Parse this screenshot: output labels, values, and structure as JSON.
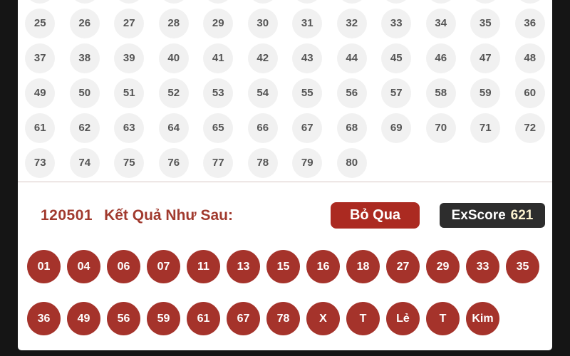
{
  "page": {
    "bg_color": "#151515",
    "panel_bg_color": "#ffffff"
  },
  "grid": {
    "rows": [
      [
        "",
        "",
        "",
        "",
        "",
        "",
        "",
        "",
        "",
        "",
        "",
        ""
      ],
      [
        "25",
        "26",
        "27",
        "28",
        "29",
        "30",
        "31",
        "32",
        "33",
        "34",
        "35",
        "36"
      ],
      [
        "37",
        "38",
        "39",
        "40",
        "41",
        "42",
        "43",
        "44",
        "45",
        "46",
        "47",
        "48"
      ],
      [
        "49",
        "50",
        "51",
        "52",
        "53",
        "54",
        "55",
        "56",
        "57",
        "58",
        "59",
        "60"
      ],
      [
        "61",
        "62",
        "63",
        "64",
        "65",
        "66",
        "67",
        "68",
        "69",
        "70",
        "71",
        "72"
      ],
      [
        "73",
        "74",
        "75",
        "76",
        "77",
        "78",
        "79",
        "80"
      ]
    ],
    "circle_color": "#f1f1f1",
    "number_color": "#555555"
  },
  "results": {
    "draw_id": "120501",
    "heading": "Kết Quả Như Sau:",
    "skip_button_label": "Bỏ Qua",
    "exscore_label": "ExScore",
    "exscore_value": "621",
    "winning_row_1": [
      "01",
      "04",
      "06",
      "07",
      "11",
      "13",
      "15",
      "16",
      "18",
      "27",
      "29",
      "33",
      "35"
    ],
    "winning_row_2": [
      "36",
      "49",
      "56",
      "59",
      "61",
      "67",
      "78",
      "X",
      "T",
      "Lẻ",
      "T",
      "Kim"
    ]
  },
  "colors": {
    "heading_red": "#a13a2e",
    "button_red": "#ab2a21",
    "result_circle_red": "#a5332b",
    "badge_dark": "#2d2d2d",
    "badge_value_cream": "#fdf3cf",
    "divider": "#d7c5c2"
  }
}
